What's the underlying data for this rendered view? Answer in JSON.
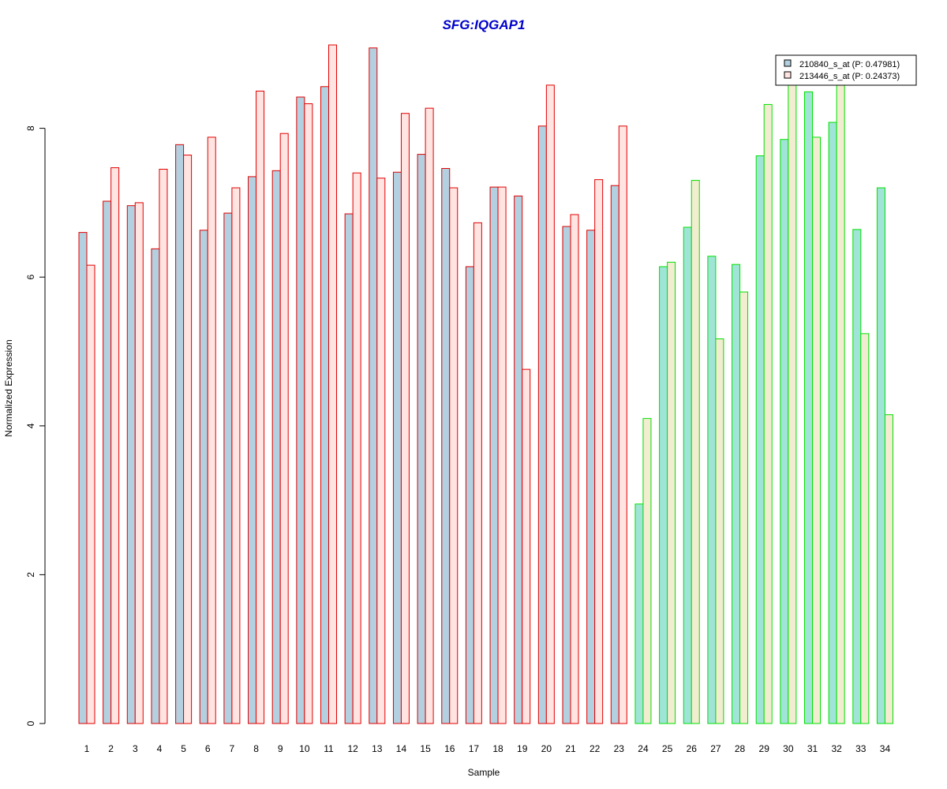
{
  "chart_data": {
    "type": "bar",
    "title": "SFG:IQGAP1",
    "xlabel": "Sample",
    "ylabel": "Normalized Expression",
    "ylim": [
      0,
      9.1
    ],
    "yticks": [
      0,
      2,
      4,
      6,
      8
    ],
    "categories": [
      "1",
      "2",
      "3",
      "4",
      "5",
      "6",
      "7",
      "8",
      "9",
      "10",
      "11",
      "12",
      "13",
      "14",
      "15",
      "16",
      "17",
      "18",
      "19",
      "20",
      "21",
      "22",
      "23",
      "24",
      "25",
      "26",
      "27",
      "28",
      "29",
      "30",
      "31",
      "32",
      "33",
      "34"
    ],
    "series": [
      {
        "name": "210840_s_at (P: 0.47981)",
        "values": [
          6.6,
          7.02,
          6.96,
          6.38,
          7.78,
          6.63,
          6.86,
          7.35,
          7.43,
          8.42,
          8.56,
          6.85,
          9.08,
          7.41,
          7.65,
          7.46,
          6.14,
          7.21,
          7.09,
          8.03,
          6.68,
          6.63,
          7.23,
          2.95,
          6.14,
          6.67,
          6.28,
          6.17,
          7.63,
          7.85,
          8.49,
          8.08,
          6.64,
          7.2
        ]
      },
      {
        "name": "213446_s_at (P: 0.24373)",
        "values": [
          6.16,
          7.47,
          7.0,
          7.45,
          7.64,
          7.88,
          7.2,
          8.5,
          7.93,
          8.33,
          9.12,
          7.4,
          7.33,
          8.2,
          8.27,
          7.2,
          6.73,
          7.21,
          4.76,
          8.58,
          6.84,
          7.31,
          8.03,
          4.1,
          6.2,
          7.3,
          5.17,
          5.8,
          8.32,
          8.75,
          7.88,
          8.75,
          5.24,
          4.15
        ]
      }
    ],
    "groups": [
      {
        "from": 1,
        "to": 23,
        "border_color": "#e00000",
        "fills": [
          "#b2d0e0",
          "#ffe4e1"
        ]
      },
      {
        "from": 24,
        "to": 34,
        "border_color": "#00e000",
        "fills": [
          "#a0e4d8",
          "#f2ecd0"
        ]
      }
    ],
    "title_color": "#0000cc",
    "legend": {
      "position": "top-right",
      "entries": [
        {
          "label": "210840_s_at (P: 0.47981)",
          "fill": "#b2d0e0"
        },
        {
          "label": "213446_s_at (P: 0.24373)",
          "fill": "#ffe4e1"
        }
      ]
    },
    "grid": false
  }
}
